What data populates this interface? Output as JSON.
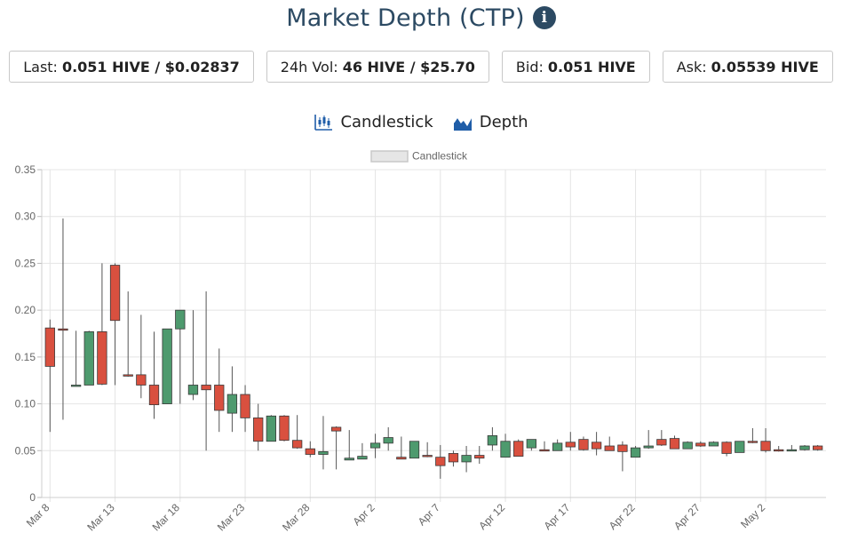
{
  "header": {
    "title": "Market Depth (CTP)",
    "info_icon": "info-circle-icon"
  },
  "stats": [
    {
      "label": "Last:",
      "value": "0.051 HIVE / $0.02837"
    },
    {
      "label": "24h Vol:",
      "value": "46 HIVE / $25.70"
    },
    {
      "label": "Bid:",
      "value": "0.051 HIVE"
    },
    {
      "label": "Ask:",
      "value": "0.05539 HIVE"
    }
  ],
  "toggles": [
    {
      "label": "Candlestick",
      "icon": "candlestick-chart-icon"
    },
    {
      "label": "Depth",
      "icon": "depth-chart-icon"
    }
  ],
  "colors": {
    "up": "#4e9a6e",
    "down": "#d9503f",
    "wick": "#555555",
    "grid": "#e4e4e4",
    "title": "#2c4a63",
    "icon_blue": "#1f5da8"
  },
  "chart_data": {
    "type": "candlestick",
    "legend": "Candlestick",
    "legend_position": "top-center",
    "grid": true,
    "ylim": [
      0,
      0.35
    ],
    "yticks": [
      "0",
      "0.05",
      "0.10",
      "0.15",
      "0.20",
      "0.25",
      "0.30",
      "0.35"
    ],
    "xticks": [
      "Mar 8",
      "Mar 13",
      "Mar 18",
      "Mar 23",
      "Mar 28",
      "Apr 2",
      "Apr 7",
      "Apr 12",
      "Apr 17",
      "Apr 22",
      "Apr 27",
      "May 2"
    ],
    "x_start": "Mar 8",
    "candles": [
      {
        "date": "Mar 8",
        "open": 0.181,
        "high": 0.19,
        "low": 0.07,
        "close": 0.14
      },
      {
        "date": "Mar 9",
        "open": 0.18,
        "high": 0.298,
        "low": 0.083,
        "close": 0.179
      },
      {
        "date": "Mar 10",
        "open": 0.12,
        "high": 0.178,
        "low": 0.12,
        "close": 0.12
      },
      {
        "date": "Mar 11",
        "open": 0.12,
        "high": 0.178,
        "low": 0.12,
        "close": 0.177
      },
      {
        "date": "Mar 12",
        "open": 0.177,
        "high": 0.25,
        "low": 0.12,
        "close": 0.121
      },
      {
        "date": "Mar 13",
        "open": 0.248,
        "high": 0.25,
        "low": 0.12,
        "close": 0.189
      },
      {
        "date": "Mar 14",
        "open": 0.131,
        "high": 0.22,
        "low": 0.129,
        "close": 0.13
      },
      {
        "date": "Mar 15",
        "open": 0.131,
        "high": 0.195,
        "low": 0.106,
        "close": 0.12
      },
      {
        "date": "Mar 16",
        "open": 0.12,
        "high": 0.177,
        "low": 0.084,
        "close": 0.099
      },
      {
        "date": "Mar 17",
        "open": 0.1,
        "high": 0.18,
        "low": 0.1,
        "close": 0.18
      },
      {
        "date": "Mar 18",
        "open": 0.18,
        "high": 0.2,
        "low": 0.1,
        "close": 0.2
      },
      {
        "date": "Mar 19",
        "open": 0.11,
        "high": 0.2,
        "low": 0.104,
        "close": 0.12
      },
      {
        "date": "Mar 20",
        "open": 0.12,
        "high": 0.22,
        "low": 0.05,
        "close": 0.115
      },
      {
        "date": "Mar 21",
        "open": 0.12,
        "high": 0.159,
        "low": 0.07,
        "close": 0.093
      },
      {
        "date": "Mar 22",
        "open": 0.09,
        "high": 0.14,
        "low": 0.07,
        "close": 0.11
      },
      {
        "date": "Mar 23",
        "open": 0.11,
        "high": 0.12,
        "low": 0.07,
        "close": 0.085
      },
      {
        "date": "Mar 24",
        "open": 0.085,
        "high": 0.1,
        "low": 0.05,
        "close": 0.06
      },
      {
        "date": "Mar 25",
        "open": 0.06,
        "high": 0.088,
        "low": 0.06,
        "close": 0.087
      },
      {
        "date": "Mar 26",
        "open": 0.087,
        "high": 0.088,
        "low": 0.06,
        "close": 0.061
      },
      {
        "date": "Mar 27",
        "open": 0.061,
        "high": 0.088,
        "low": 0.052,
        "close": 0.053
      },
      {
        "date": "Mar 28",
        "open": 0.052,
        "high": 0.06,
        "low": 0.043,
        "close": 0.046
      },
      {
        "date": "Mar 29",
        "open": 0.046,
        "high": 0.087,
        "low": 0.03,
        "close": 0.049
      },
      {
        "date": "Mar 30",
        "open": 0.075,
        "high": 0.076,
        "low": 0.03,
        "close": 0.071
      },
      {
        "date": "Mar 31",
        "open": 0.04,
        "high": 0.072,
        "low": 0.04,
        "close": 0.042
      },
      {
        "date": "Apr 1",
        "open": 0.041,
        "high": 0.058,
        "low": 0.041,
        "close": 0.044
      },
      {
        "date": "Apr 2",
        "open": 0.053,
        "high": 0.068,
        "low": 0.042,
        "close": 0.058
      },
      {
        "date": "Apr 3",
        "open": 0.058,
        "high": 0.075,
        "low": 0.05,
        "close": 0.064
      },
      {
        "date": "Apr 4",
        "open": 0.043,
        "high": 0.065,
        "low": 0.041,
        "close": 0.041
      },
      {
        "date": "Apr 5",
        "open": 0.042,
        "high": 0.06,
        "low": 0.042,
        "close": 0.06
      },
      {
        "date": "Apr 6",
        "open": 0.045,
        "high": 0.059,
        "low": 0.043,
        "close": 0.044
      },
      {
        "date": "Apr 7",
        "open": 0.043,
        "high": 0.056,
        "low": 0.02,
        "close": 0.034
      },
      {
        "date": "Apr 8",
        "open": 0.047,
        "high": 0.05,
        "low": 0.033,
        "close": 0.038
      },
      {
        "date": "Apr 9",
        "open": 0.038,
        "high": 0.055,
        "low": 0.027,
        "close": 0.045
      },
      {
        "date": "Apr 10",
        "open": 0.045,
        "high": 0.055,
        "low": 0.036,
        "close": 0.042
      },
      {
        "date": "Apr 11",
        "open": 0.056,
        "high": 0.075,
        "low": 0.05,
        "close": 0.066
      },
      {
        "date": "Apr 12",
        "open": 0.043,
        "high": 0.068,
        "low": 0.043,
        "close": 0.06
      },
      {
        "date": "Apr 13",
        "open": 0.06,
        "high": 0.062,
        "low": 0.044,
        "close": 0.044
      },
      {
        "date": "Apr 14",
        "open": 0.053,
        "high": 0.062,
        "low": 0.05,
        "close": 0.062
      },
      {
        "date": "Apr 15",
        "open": 0.051,
        "high": 0.06,
        "low": 0.05,
        "close": 0.05
      },
      {
        "date": "Apr 16",
        "open": 0.05,
        "high": 0.062,
        "low": 0.05,
        "close": 0.058
      },
      {
        "date": "Apr 17",
        "open": 0.059,
        "high": 0.07,
        "low": 0.05,
        "close": 0.054
      },
      {
        "date": "Apr 18",
        "open": 0.062,
        "high": 0.065,
        "low": 0.05,
        "close": 0.051
      },
      {
        "date": "Apr 19",
        "open": 0.059,
        "high": 0.07,
        "low": 0.045,
        "close": 0.052
      },
      {
        "date": "Apr 20",
        "open": 0.055,
        "high": 0.065,
        "low": 0.05,
        "close": 0.05
      },
      {
        "date": "Apr 21",
        "open": 0.056,
        "high": 0.06,
        "low": 0.028,
        "close": 0.049
      },
      {
        "date": "Apr 22",
        "open": 0.043,
        "high": 0.055,
        "low": 0.043,
        "close": 0.053
      },
      {
        "date": "Apr 23",
        "open": 0.053,
        "high": 0.072,
        "low": 0.052,
        "close": 0.055
      },
      {
        "date": "Apr 24",
        "open": 0.062,
        "high": 0.072,
        "low": 0.055,
        "close": 0.056
      },
      {
        "date": "Apr 25",
        "open": 0.063,
        "high": 0.066,
        "low": 0.052,
        "close": 0.052
      },
      {
        "date": "Apr 26",
        "open": 0.052,
        "high": 0.06,
        "low": 0.052,
        "close": 0.059
      },
      {
        "date": "Apr 27",
        "open": 0.058,
        "high": 0.06,
        "low": 0.054,
        "close": 0.055
      },
      {
        "date": "Apr 28",
        "open": 0.055,
        "high": 0.06,
        "low": 0.055,
        "close": 0.059
      },
      {
        "date": "Apr 29",
        "open": 0.059,
        "high": 0.06,
        "low": 0.044,
        "close": 0.047
      },
      {
        "date": "Apr 30",
        "open": 0.048,
        "high": 0.06,
        "low": 0.048,
        "close": 0.06
      },
      {
        "date": "May 1",
        "open": 0.06,
        "high": 0.074,
        "low": 0.058,
        "close": 0.059
      },
      {
        "date": "May 2",
        "open": 0.06,
        "high": 0.074,
        "low": 0.048,
        "close": 0.05
      },
      {
        "date": "May 3",
        "open": 0.051,
        "high": 0.055,
        "low": 0.049,
        "close": 0.05
      },
      {
        "date": "May 4",
        "open": 0.051,
        "high": 0.056,
        "low": 0.05,
        "close": 0.051
      },
      {
        "date": "May 5",
        "open": 0.051,
        "high": 0.056,
        "low": 0.05,
        "close": 0.055
      },
      {
        "date": "May 6",
        "open": 0.055,
        "high": 0.056,
        "low": 0.05,
        "close": 0.051
      }
    ]
  }
}
